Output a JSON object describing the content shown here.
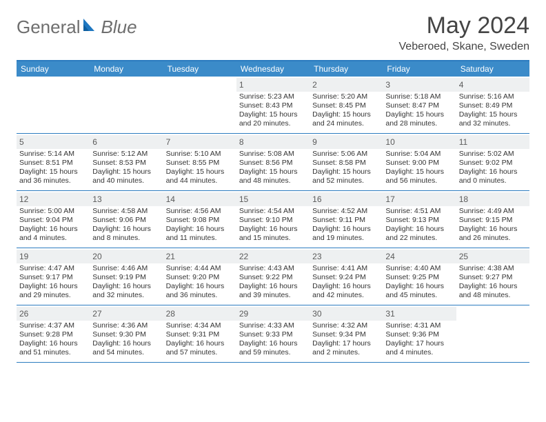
{
  "brand": {
    "word1": "General",
    "word2": "Blue"
  },
  "title": "May 2024",
  "location": "Veberoed, Skane, Sweden",
  "colors": {
    "header_bg": "#3b8bc9",
    "header_text": "#ffffff",
    "rule": "#2b7bbf",
    "daynum_bg": "#eef0f1",
    "text": "#333333",
    "logo_gray": "#6e6e6e",
    "logo_blue": "#1f77c0"
  },
  "weekdays": [
    "Sunday",
    "Monday",
    "Tuesday",
    "Wednesday",
    "Thursday",
    "Friday",
    "Saturday"
  ],
  "weeks": [
    [
      {
        "n": "",
        "sr": "",
        "ss": "",
        "dl": ""
      },
      {
        "n": "",
        "sr": "",
        "ss": "",
        "dl": ""
      },
      {
        "n": "",
        "sr": "",
        "ss": "",
        "dl": ""
      },
      {
        "n": "1",
        "sr": "5:23 AM",
        "ss": "8:43 PM",
        "dl": "15 hours and 20 minutes."
      },
      {
        "n": "2",
        "sr": "5:20 AM",
        "ss": "8:45 PM",
        "dl": "15 hours and 24 minutes."
      },
      {
        "n": "3",
        "sr": "5:18 AM",
        "ss": "8:47 PM",
        "dl": "15 hours and 28 minutes."
      },
      {
        "n": "4",
        "sr": "5:16 AM",
        "ss": "8:49 PM",
        "dl": "15 hours and 32 minutes."
      }
    ],
    [
      {
        "n": "5",
        "sr": "5:14 AM",
        "ss": "8:51 PM",
        "dl": "15 hours and 36 minutes."
      },
      {
        "n": "6",
        "sr": "5:12 AM",
        "ss": "8:53 PM",
        "dl": "15 hours and 40 minutes."
      },
      {
        "n": "7",
        "sr": "5:10 AM",
        "ss": "8:55 PM",
        "dl": "15 hours and 44 minutes."
      },
      {
        "n": "8",
        "sr": "5:08 AM",
        "ss": "8:56 PM",
        "dl": "15 hours and 48 minutes."
      },
      {
        "n": "9",
        "sr": "5:06 AM",
        "ss": "8:58 PM",
        "dl": "15 hours and 52 minutes."
      },
      {
        "n": "10",
        "sr": "5:04 AM",
        "ss": "9:00 PM",
        "dl": "15 hours and 56 minutes."
      },
      {
        "n": "11",
        "sr": "5:02 AM",
        "ss": "9:02 PM",
        "dl": "16 hours and 0 minutes."
      }
    ],
    [
      {
        "n": "12",
        "sr": "5:00 AM",
        "ss": "9:04 PM",
        "dl": "16 hours and 4 minutes."
      },
      {
        "n": "13",
        "sr": "4:58 AM",
        "ss": "9:06 PM",
        "dl": "16 hours and 8 minutes."
      },
      {
        "n": "14",
        "sr": "4:56 AM",
        "ss": "9:08 PM",
        "dl": "16 hours and 11 minutes."
      },
      {
        "n": "15",
        "sr": "4:54 AM",
        "ss": "9:10 PM",
        "dl": "16 hours and 15 minutes."
      },
      {
        "n": "16",
        "sr": "4:52 AM",
        "ss": "9:11 PM",
        "dl": "16 hours and 19 minutes."
      },
      {
        "n": "17",
        "sr": "4:51 AM",
        "ss": "9:13 PM",
        "dl": "16 hours and 22 minutes."
      },
      {
        "n": "18",
        "sr": "4:49 AM",
        "ss": "9:15 PM",
        "dl": "16 hours and 26 minutes."
      }
    ],
    [
      {
        "n": "19",
        "sr": "4:47 AM",
        "ss": "9:17 PM",
        "dl": "16 hours and 29 minutes."
      },
      {
        "n": "20",
        "sr": "4:46 AM",
        "ss": "9:19 PM",
        "dl": "16 hours and 32 minutes."
      },
      {
        "n": "21",
        "sr": "4:44 AM",
        "ss": "9:20 PM",
        "dl": "16 hours and 36 minutes."
      },
      {
        "n": "22",
        "sr": "4:43 AM",
        "ss": "9:22 PM",
        "dl": "16 hours and 39 minutes."
      },
      {
        "n": "23",
        "sr": "4:41 AM",
        "ss": "9:24 PM",
        "dl": "16 hours and 42 minutes."
      },
      {
        "n": "24",
        "sr": "4:40 AM",
        "ss": "9:25 PM",
        "dl": "16 hours and 45 minutes."
      },
      {
        "n": "25",
        "sr": "4:38 AM",
        "ss": "9:27 PM",
        "dl": "16 hours and 48 minutes."
      }
    ],
    [
      {
        "n": "26",
        "sr": "4:37 AM",
        "ss": "9:28 PM",
        "dl": "16 hours and 51 minutes."
      },
      {
        "n": "27",
        "sr": "4:36 AM",
        "ss": "9:30 PM",
        "dl": "16 hours and 54 minutes."
      },
      {
        "n": "28",
        "sr": "4:34 AM",
        "ss": "9:31 PM",
        "dl": "16 hours and 57 minutes."
      },
      {
        "n": "29",
        "sr": "4:33 AM",
        "ss": "9:33 PM",
        "dl": "16 hours and 59 minutes."
      },
      {
        "n": "30",
        "sr": "4:32 AM",
        "ss": "9:34 PM",
        "dl": "17 hours and 2 minutes."
      },
      {
        "n": "31",
        "sr": "4:31 AM",
        "ss": "9:36 PM",
        "dl": "17 hours and 4 minutes."
      },
      {
        "n": "",
        "sr": "",
        "ss": "",
        "dl": ""
      }
    ]
  ]
}
